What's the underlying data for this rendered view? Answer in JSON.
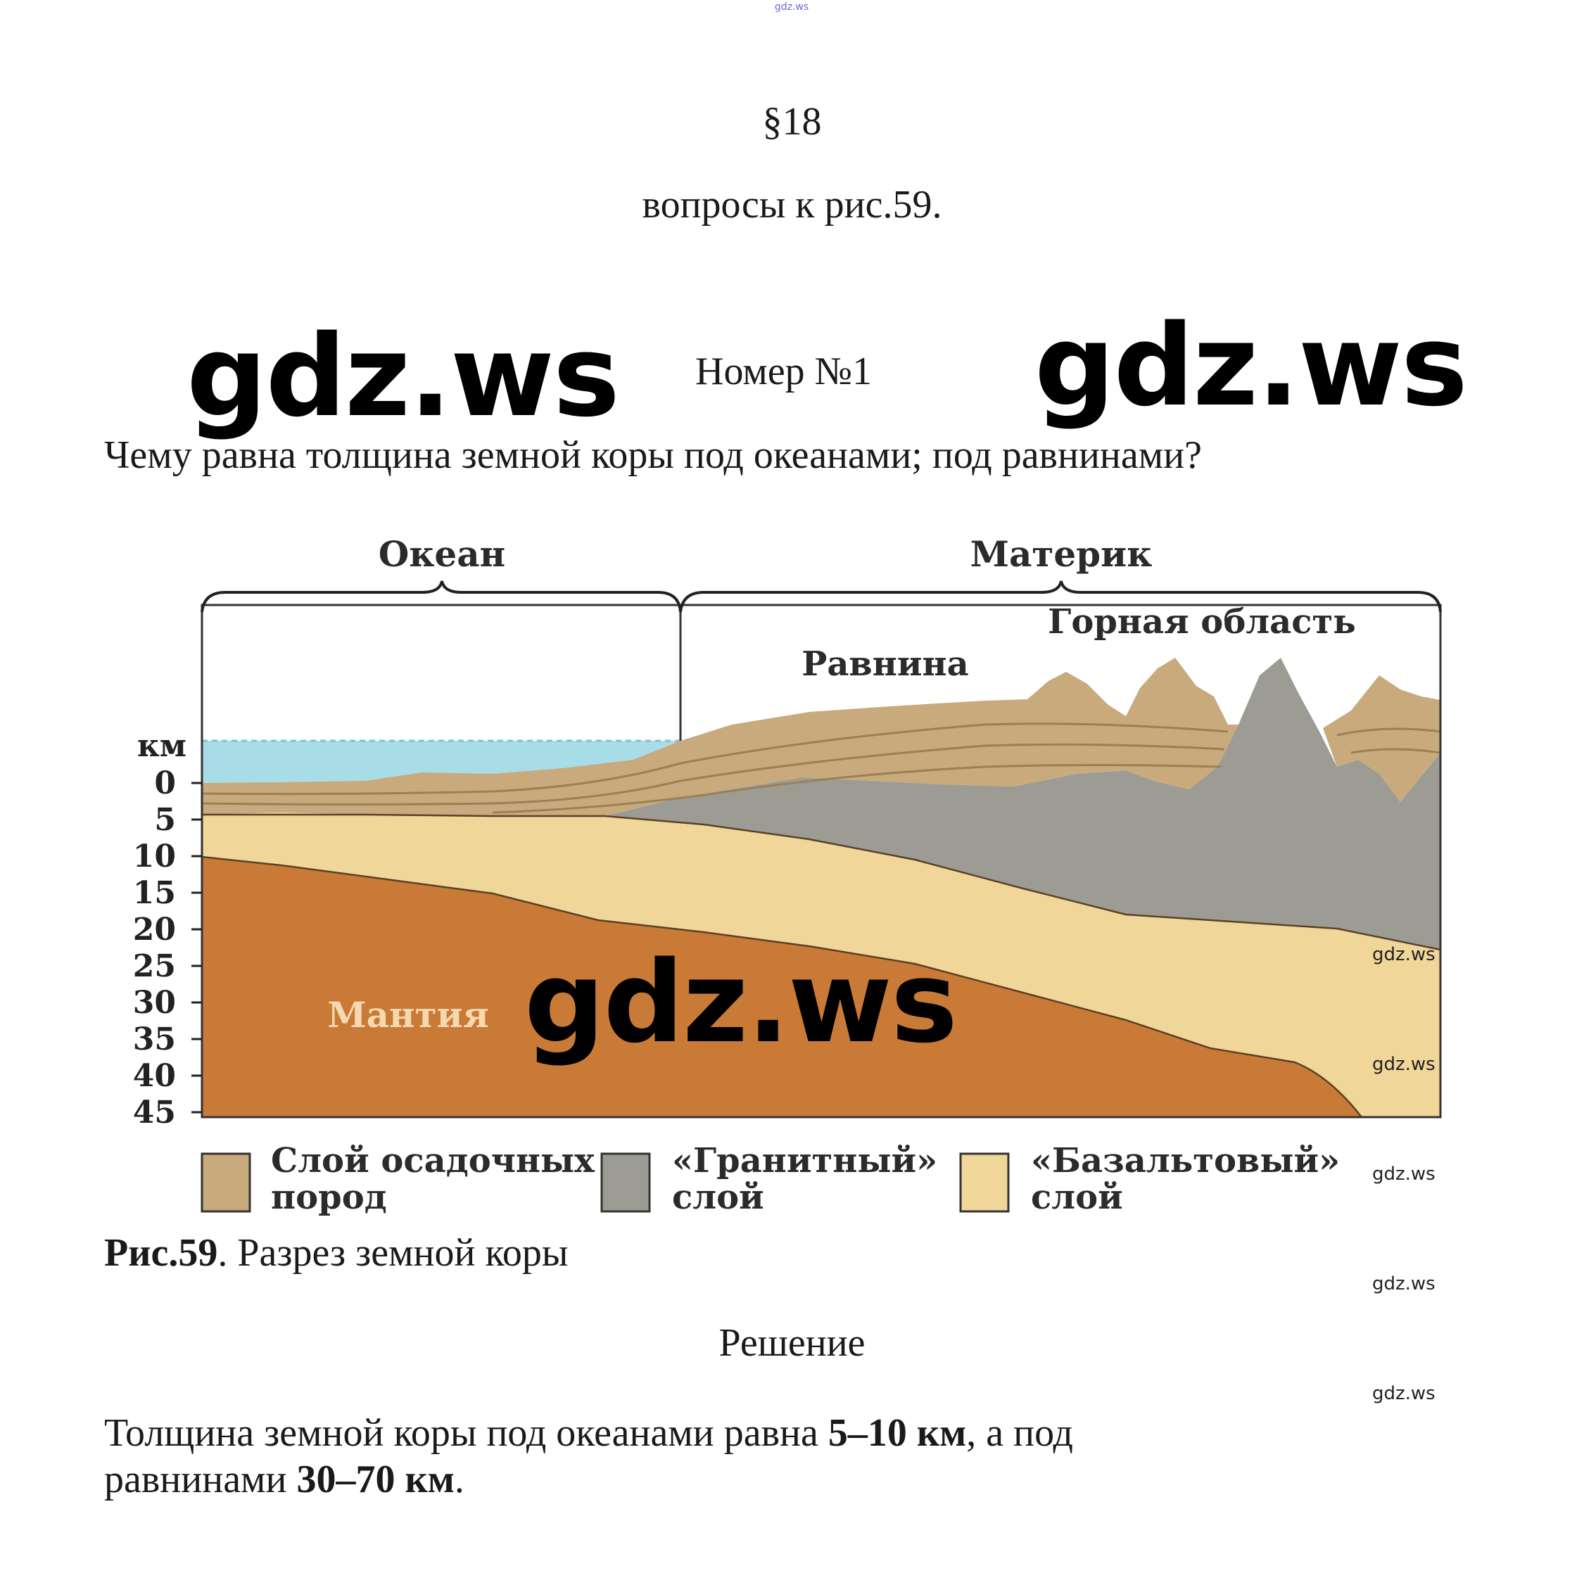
{
  "top_watermark": "gdz.ws",
  "section": "§18",
  "subtitle": "вопросы к рис.59.",
  "watermarks": {
    "left": "gdz.ws",
    "right": "gdz.ws",
    "figure": "gdz.ws",
    "side": [
      "gdz.ws",
      "gdz.ws",
      "gdz.ws",
      "gdz.ws",
      "gdz.ws"
    ]
  },
  "task_number": "Номер №1",
  "question": "Чему равна толщина земной коры под океанами; под равнинами?",
  "figure": {
    "labels": {
      "ocean": "Океан",
      "continent": "Материк",
      "plain": "Равнина",
      "mountains": "Горная область",
      "mantle": "Мантия",
      "unit": "км"
    },
    "depth_ticks": [
      "0",
      "5",
      "10",
      "15",
      "20",
      "25",
      "30",
      "35",
      "40",
      "45"
    ],
    "legend": [
      {
        "line1": "Слой осадочных",
        "line2": "пород",
        "color": "#c8aa7c"
      },
      {
        "line1": "«Гранитный»",
        "line2": "слой",
        "color": "#9c9c94"
      },
      {
        "line1": "«Базальтовый»",
        "line2": "слой",
        "color": "#f0d699"
      }
    ],
    "colors": {
      "sediment": "#c8aa7c",
      "granite": "#9c9c94",
      "basalt": "#f0d699",
      "mantle": "#c97a36",
      "water": "#a8dce6"
    }
  },
  "caption": {
    "bold": "Рис.59",
    "text": ". Разрез земной коры"
  },
  "solution_heading": "Решение",
  "answer": {
    "part1": "Толщина земной коры под океанами равна ",
    "bold1": "5–10 км",
    "part2": ", а под",
    "part3": "равнинами ",
    "bold2": "30–70 км",
    "part4": "."
  }
}
